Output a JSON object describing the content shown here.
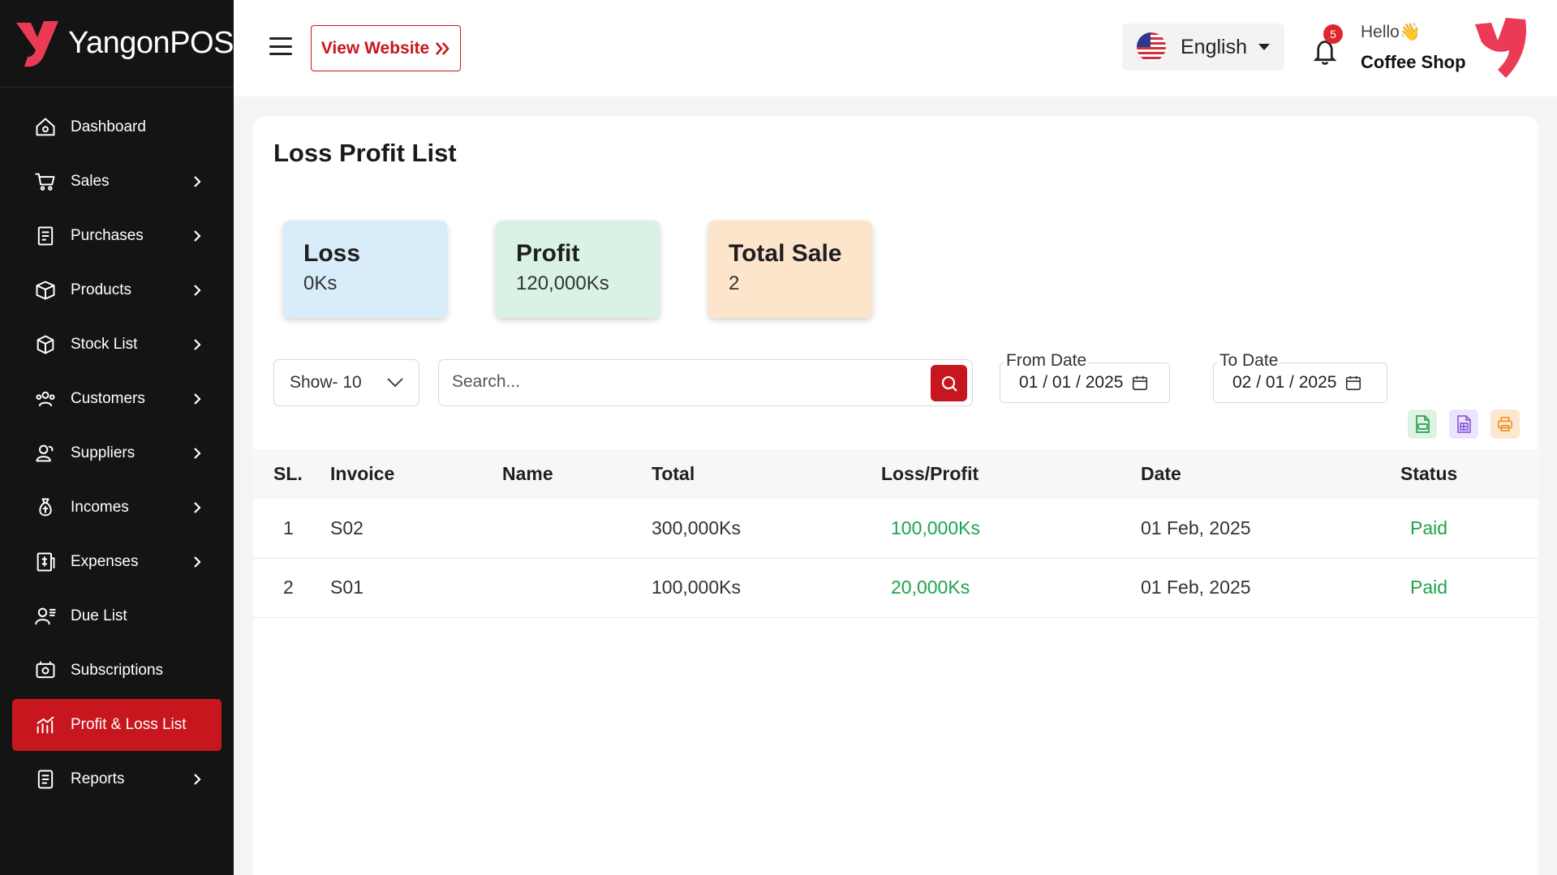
{
  "brand": {
    "name": "YangonPOS",
    "accent": "#c8161e",
    "logo_color": "#ea3a55"
  },
  "sidebar": {
    "items": [
      {
        "label": "Dashboard",
        "icon": "home-icon",
        "has_children": false,
        "active": false
      },
      {
        "label": "Sales",
        "icon": "cart-icon",
        "has_children": true,
        "active": false
      },
      {
        "label": "Purchases",
        "icon": "receipt-icon",
        "has_children": true,
        "active": false
      },
      {
        "label": "Products",
        "icon": "box-icon",
        "has_children": true,
        "active": false
      },
      {
        "label": "Stock List",
        "icon": "cube-icon",
        "has_children": true,
        "active": false
      },
      {
        "label": "Customers",
        "icon": "users-icon",
        "has_children": true,
        "active": false
      },
      {
        "label": "Suppliers",
        "icon": "supplier-icon",
        "has_children": true,
        "active": false
      },
      {
        "label": "Incomes",
        "icon": "money-bag-icon",
        "has_children": true,
        "active": false
      },
      {
        "label": "Expenses",
        "icon": "invoice-dollar-icon",
        "has_children": true,
        "active": false
      },
      {
        "label": "Due List",
        "icon": "user-list-icon",
        "has_children": false,
        "active": false
      },
      {
        "label": "Subscriptions",
        "icon": "badge-icon",
        "has_children": false,
        "active": false
      },
      {
        "label": "Profit & Loss List",
        "icon": "bar-chart-icon",
        "has_children": false,
        "active": true
      },
      {
        "label": "Reports",
        "icon": "report-icon",
        "has_children": true,
        "active": false
      }
    ]
  },
  "topbar": {
    "view_website": "View Website",
    "language": "English",
    "notification_count": "5",
    "greeting": "Hello👋",
    "shop_name": "Coffee Shop"
  },
  "page": {
    "title": "Loss Profit List",
    "stats": {
      "loss": {
        "title": "Loss",
        "value": "0Ks",
        "color": "#d8ecf9"
      },
      "profit": {
        "title": "Profit",
        "value": "120,000Ks",
        "color": "#d9f2e4"
      },
      "total_sale": {
        "title": "Total Sale",
        "value": "2",
        "color": "#fde5cc"
      }
    },
    "show_select": "Show- 10",
    "search_placeholder": "Search...",
    "from_date": {
      "label": "From Date",
      "value": "01 / 01 / 2025"
    },
    "to_date": {
      "label": "To Date",
      "value": "02 / 01 / 2025"
    }
  },
  "table": {
    "headers": {
      "sl": "SL.",
      "invoice": "Invoice",
      "name": "Name",
      "total": "Total",
      "loss_profit": "Loss/Profit",
      "date": "Date",
      "status": "Status"
    },
    "rows": [
      {
        "sl": "1",
        "invoice": "S02",
        "name": "",
        "total": "300,000Ks",
        "loss_profit": "100,000Ks",
        "date": "01 Feb, 2025",
        "status": "Paid"
      },
      {
        "sl": "2",
        "invoice": "S01",
        "name": "",
        "total": "100,000Ks",
        "loss_profit": "20,000Ks",
        "date": "01 Feb, 2025",
        "status": "Paid"
      }
    ],
    "positive_color": "#1ea44a"
  }
}
